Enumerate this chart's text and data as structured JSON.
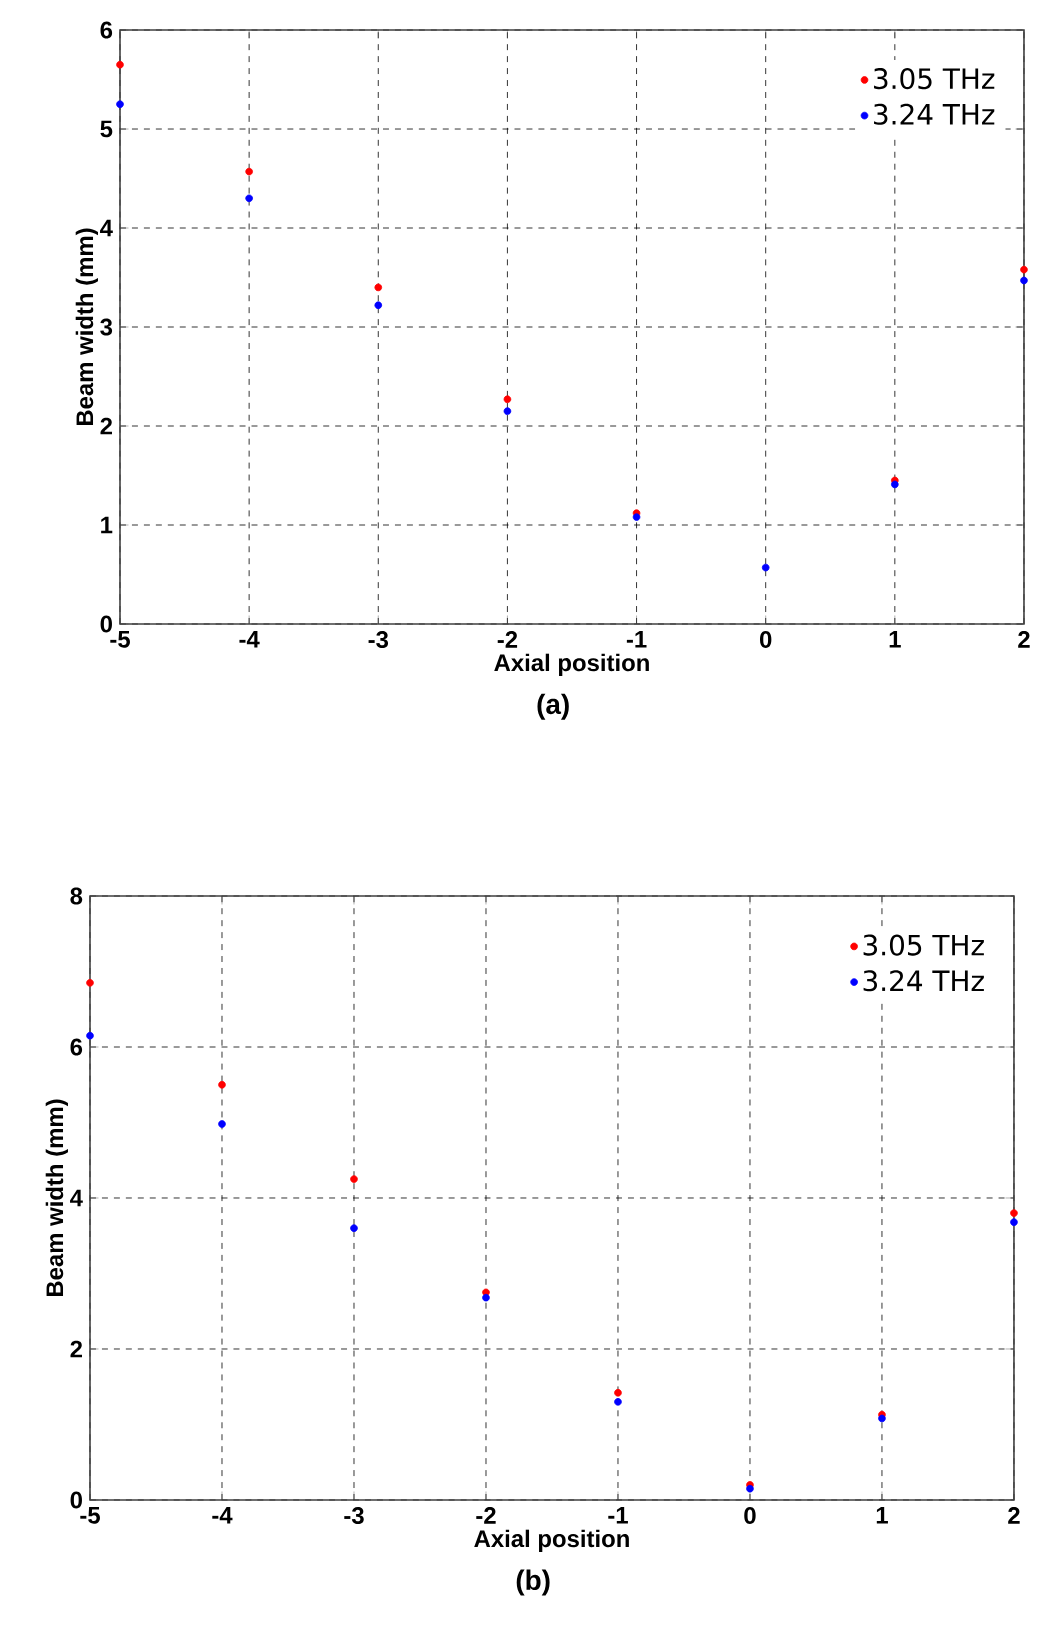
{
  "chart_data": [
    {
      "type": "scatter",
      "x": [
        -5,
        -4,
        -3,
        -2,
        -1,
        0,
        1,
        2
      ],
      "xlabel": "Axial position",
      "ylabel": "Beam width (mm)",
      "annotations": [
        "(a)"
      ],
      "xlim": [
        -5,
        2
      ],
      "ylim": [
        0,
        6
      ],
      "xticks": [
        -5,
        -4,
        -3,
        -2,
        -1,
        0,
        1,
        2
      ],
      "yticks": [
        0,
        1,
        2,
        3,
        4,
        5,
        6
      ],
      "grid": true,
      "legend": "top right",
      "marker": "circle",
      "series": [
        {
          "name": "3.05 THz",
          "color": "#ff0000",
          "values": [
            5.65,
            4.57,
            3.4,
            2.27,
            1.12,
            null,
            1.45,
            3.58
          ]
        },
        {
          "name": "3.24 THz",
          "color": "#0000ff",
          "values": [
            5.25,
            4.3,
            3.22,
            2.15,
            1.08,
            0.57,
            1.41,
            3.47
          ]
        }
      ]
    },
    {
      "type": "scatter",
      "x": [
        -5,
        -4,
        -3,
        -2,
        -1,
        0,
        1,
        2
      ],
      "xlabel": "Axial position",
      "ylabel": "Beam width (mm)",
      "annotations": [
        "(b)"
      ],
      "xlim": [
        -5,
        2
      ],
      "ylim": [
        0,
        8
      ],
      "xticks": [
        -5,
        -4,
        -3,
        -2,
        -1,
        0,
        1,
        2
      ],
      "yticks": [
        0,
        2,
        4,
        6,
        8
      ],
      "grid": true,
      "legend": "top right",
      "marker": "circle",
      "series": [
        {
          "name": "3.05 THz",
          "color": "#ff0000",
          "values": [
            6.85,
            5.5,
            4.25,
            2.75,
            1.42,
            0.2,
            1.13,
            3.8
          ]
        },
        {
          "name": "3.24 THz",
          "color": "#0000ff",
          "values": [
            6.15,
            4.98,
            3.6,
            2.68,
            1.3,
            0.15,
            1.08,
            3.68
          ]
        }
      ]
    }
  ]
}
